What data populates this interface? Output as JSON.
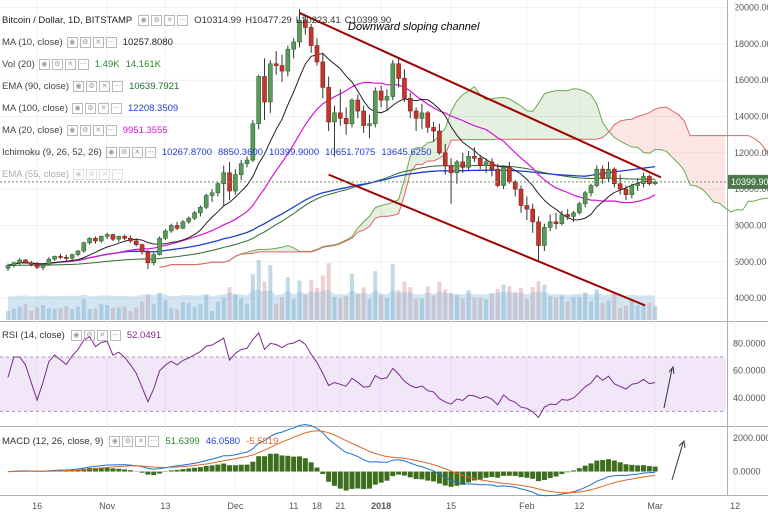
{
  "chart_data": {
    "type": "candlestick",
    "symbol": "Bitcoin / Dollar, 1D, BITSTAMP",
    "ohlc": {
      "O": "10314.99",
      "H": "10477.29",
      "L": "10223.41",
      "C": "10399.90"
    },
    "last_price_label": "10399.90",
    "y_ticks": [
      "20000.00",
      "18000.00",
      "16000.00",
      "14000.00",
      "12000.00",
      "10000.00",
      "8000.00",
      "6000.00",
      "4000.00"
    ],
    "x_ticks": [
      "16",
      "Nov",
      "13",
      "Dec",
      "11",
      "18",
      "21",
      "2018",
      "15",
      "Feb",
      "12",
      "Mar",
      "12"
    ],
    "annotation": "Downward sloping channel",
    "indicators": [
      {
        "name": "MA (10, close)",
        "values": [
          "10257.8080"
        ],
        "color": "#222222"
      },
      {
        "name": "Vol (20)",
        "values": [
          "1.49K",
          "14.161K"
        ],
        "color": "#2d8a2d"
      },
      {
        "name": "EMA (90, close)",
        "values": [
          "10639.7921"
        ],
        "color": "#2d6b2d"
      },
      {
        "name": "MA (100, close)",
        "values": [
          "12208.3509"
        ],
        "color": "#1d3fd1"
      },
      {
        "name": "MA (20, close)",
        "values": [
          "9951.3555"
        ],
        "color": "#d616d6"
      },
      {
        "name": "Ichimoku (9, 26, 52, 26)",
        "values": [
          "10267.8700",
          "8850.3600",
          "10399.9000",
          "10651.7075",
          "13645.6250"
        ],
        "color": "#1d3fd1"
      },
      {
        "name": "EMA (55, close)",
        "values": [],
        "color": "#9fb8d8"
      }
    ],
    "rsi": {
      "label": "RSI (14, close)",
      "value": "52.0491",
      "y_ticks": [
        "80.0000",
        "60.0000",
        "40.0000"
      ]
    },
    "macd": {
      "label": "MACD (12, 26, close, 9)",
      "values": [
        "51.6399",
        "46.0580",
        "-5.5819"
      ],
      "y_ticks": [
        "2000.0000",
        "0.0000"
      ]
    },
    "candles": [
      [
        5650,
        5900,
        5500,
        5800
      ],
      [
        5800,
        6000,
        5700,
        5950
      ],
      [
        5950,
        6200,
        5850,
        6100
      ],
      [
        6100,
        6150,
        5900,
        5950
      ],
      [
        5950,
        6050,
        5750,
        5850
      ],
      [
        5850,
        6000,
        5600,
        5700
      ],
      [
        5700,
        5900,
        5550,
        5850
      ],
      [
        5850,
        6250,
        5800,
        6150
      ],
      [
        6150,
        6350,
        6050,
        6300
      ],
      [
        6300,
        6450,
        6150,
        6250
      ],
      [
        6250,
        6400,
        6050,
        6200
      ],
      [
        6200,
        6450,
        6100,
        6400
      ],
      [
        6400,
        6650,
        6300,
        6600
      ],
      [
        6600,
        7100,
        6500,
        7050
      ],
      [
        7050,
        7350,
        6950,
        7300
      ],
      [
        7300,
        7400,
        7000,
        7150
      ],
      [
        7150,
        7450,
        7050,
        7400
      ],
      [
        7400,
        7600,
        7250,
        7500
      ],
      [
        7500,
        7550,
        7150,
        7250
      ],
      [
        7250,
        7450,
        7100,
        7400
      ],
      [
        7400,
        7500,
        7200,
        7300
      ],
      [
        7300,
        7450,
        7050,
        7150
      ],
      [
        7150,
        7300,
        6850,
        6950
      ],
      [
        6950,
        7000,
        6400,
        6550
      ],
      [
        6550,
        6650,
        5600,
        5950
      ],
      [
        5950,
        6500,
        5800,
        6400
      ],
      [
        6400,
        7400,
        6350,
        7300
      ],
      [
        7300,
        7800,
        7200,
        7700
      ],
      [
        7700,
        8100,
        7600,
        8000
      ],
      [
        8000,
        8200,
        7750,
        7850
      ],
      [
        7850,
        8300,
        7800,
        8200
      ],
      [
        8200,
        8500,
        8100,
        8400
      ],
      [
        8400,
        8800,
        8300,
        8700
      ],
      [
        8700,
        9100,
        8500,
        9000
      ],
      [
        9000,
        9750,
        8900,
        9650
      ],
      [
        9650,
        10000,
        9300,
        9800
      ],
      [
        9800,
        10400,
        9600,
        10300
      ],
      [
        10300,
        11300,
        9100,
        10900
      ],
      [
        10900,
        11500,
        9400,
        9900
      ],
      [
        9900,
        11100,
        9700,
        10800
      ],
      [
        10800,
        11600,
        10500,
        11400
      ],
      [
        11400,
        11800,
        11200,
        11600
      ],
      [
        11600,
        13800,
        11500,
        13600
      ],
      [
        13600,
        16300,
        13300,
        16200
      ],
      [
        16200,
        17200,
        13800,
        14800
      ],
      [
        14800,
        17100,
        14200,
        16900
      ],
      [
        16900,
        17600,
        16300,
        16800
      ],
      [
        16800,
        17400,
        15900,
        16500
      ],
      [
        16500,
        17900,
        16200,
        17700
      ],
      [
        17700,
        18300,
        17200,
        18100
      ],
      [
        18100,
        19900,
        17800,
        19300
      ],
      [
        19300,
        19600,
        18500,
        18900
      ],
      [
        18900,
        19100,
        17500,
        17900
      ],
      [
        17900,
        18300,
        16800,
        17000
      ],
      [
        17000,
        17500,
        15000,
        15600
      ],
      [
        15600,
        16200,
        13200,
        13700
      ],
      [
        13700,
        14600,
        11800,
        14200
      ],
      [
        14200,
        15500,
        13500,
        13900
      ],
      [
        13900,
        14500,
        13000,
        13600
      ],
      [
        13600,
        15000,
        13400,
        14900
      ],
      [
        14900,
        15200,
        13900,
        14300
      ],
      [
        14300,
        14600,
        13100,
        13500
      ],
      [
        13500,
        14100,
        12800,
        13600
      ],
      [
        13600,
        15600,
        13400,
        15400
      ],
      [
        15400,
        15700,
        14500,
        14900
      ],
      [
        14900,
        15500,
        14300,
        15100
      ],
      [
        15100,
        17100,
        14900,
        16900
      ],
      [
        16900,
        17200,
        15600,
        16100
      ],
      [
        16100,
        16600,
        14800,
        15000
      ],
      [
        15000,
        15300,
        13900,
        14300
      ],
      [
        14300,
        14500,
        13200,
        13900
      ],
      [
        13900,
        14700,
        13300,
        14200
      ],
      [
        14200,
        14300,
        13100,
        13400
      ],
      [
        13400,
        13700,
        12600,
        13200
      ],
      [
        13200,
        13600,
        11900,
        12000
      ],
      [
        12000,
        12500,
        10800,
        11300
      ],
      [
        11300,
        11700,
        9200,
        10900
      ],
      [
        10900,
        11600,
        10300,
        11500
      ],
      [
        11500,
        12000,
        10900,
        11200
      ],
      [
        11200,
        12100,
        11000,
        11800
      ],
      [
        11800,
        12300,
        11500,
        11700
      ],
      [
        11700,
        11900,
        11100,
        11300
      ],
      [
        11300,
        11700,
        10900,
        11500
      ],
      [
        11500,
        11700,
        10700,
        11100
      ],
      [
        11100,
        11400,
        10100,
        10200
      ],
      [
        10200,
        11300,
        10000,
        11200
      ],
      [
        11200,
        11500,
        10300,
        10400
      ],
      [
        10400,
        10500,
        9600,
        10000
      ],
      [
        10000,
        10200,
        8700,
        9100
      ],
      [
        9100,
        9600,
        8300,
        8900
      ],
      [
        8900,
        9200,
        7600,
        8200
      ],
      [
        8200,
        8500,
        6000,
        6900
      ],
      [
        6900,
        8100,
        6600,
        7900
      ],
      [
        7900,
        8600,
        7700,
        8200
      ],
      [
        8200,
        8700,
        7800,
        8100
      ],
      [
        8100,
        8800,
        8000,
        8600
      ],
      [
        8600,
        8900,
        8300,
        8500
      ],
      [
        8500,
        8800,
        8200,
        8700
      ],
      [
        8700,
        9300,
        8600,
        9200
      ],
      [
        9200,
        9900,
        9000,
        9800
      ],
      [
        9800,
        10300,
        9600,
        10200
      ],
      [
        10200,
        11300,
        10100,
        11100
      ],
      [
        11100,
        11300,
        10300,
        10600
      ],
      [
        10600,
        11500,
        10400,
        11100
      ],
      [
        11100,
        11200,
        10100,
        10300
      ],
      [
        10300,
        10800,
        9700,
        10000
      ],
      [
        10000,
        10200,
        9400,
        9700
      ],
      [
        9700,
        10300,
        9500,
        10200
      ],
      [
        10200,
        10600,
        9900,
        10300
      ],
      [
        10300,
        10900,
        10100,
        10700
      ],
      [
        10700,
        10800,
        10200,
        10300
      ],
      [
        10300,
        10480,
        10220,
        10400
      ]
    ]
  }
}
